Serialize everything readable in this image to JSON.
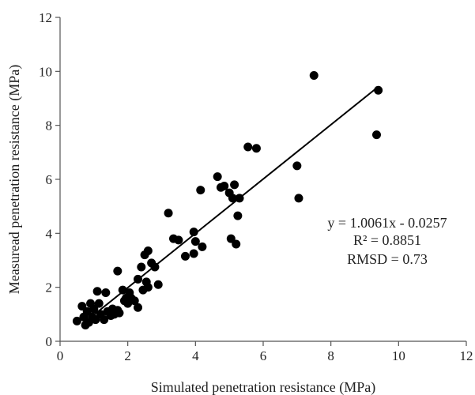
{
  "chart_data": {
    "type": "scatter",
    "title": "",
    "xlabel": "Simulated penetration resistance (MPa)",
    "ylabel": "Measuread penetration resistance (MPa)",
    "xlim": [
      0,
      12
    ],
    "ylim": [
      0,
      12
    ],
    "xticks": [
      0,
      2,
      4,
      6,
      8,
      10,
      12
    ],
    "yticks": [
      0,
      2,
      4,
      6,
      8,
      10,
      12
    ],
    "grid": false,
    "legend": "none",
    "colors": {
      "points": "#000000",
      "line": "#000000",
      "axis": "#555555"
    },
    "annotations": [
      "y = 1.0061x - 0.0257",
      "R² = 0.8851",
      "RMSD = 0.73"
    ],
    "fit": {
      "slope": 1.0061,
      "intercept": -0.0257,
      "x_range": [
        0.65,
        9.4
      ]
    },
    "points": [
      [
        0.5,
        0.75
      ],
      [
        0.65,
        1.3
      ],
      [
        0.7,
        0.9
      ],
      [
        0.75,
        0.6
      ],
      [
        0.8,
        1.1
      ],
      [
        0.85,
        0.7
      ],
      [
        0.9,
        1.4
      ],
      [
        0.95,
        0.9
      ],
      [
        1.0,
        1.2
      ],
      [
        1.05,
        0.8
      ],
      [
        1.1,
        1.85
      ],
      [
        1.15,
        1.4
      ],
      [
        1.2,
        1.0
      ],
      [
        1.3,
        0.8
      ],
      [
        1.35,
        1.8
      ],
      [
        1.4,
        1.1
      ],
      [
        1.5,
        0.95
      ],
      [
        1.55,
        1.2
      ],
      [
        1.6,
        1.0
      ],
      [
        1.7,
        1.15
      ],
      [
        1.7,
        2.6
      ],
      [
        1.75,
        1.05
      ],
      [
        1.85,
        1.9
      ],
      [
        1.9,
        1.5
      ],
      [
        1.95,
        1.6
      ],
      [
        2.0,
        1.4
      ],
      [
        2.05,
        1.8
      ],
      [
        2.1,
        1.6
      ],
      [
        2.2,
        1.5
      ],
      [
        2.3,
        1.25
      ],
      [
        2.3,
        2.3
      ],
      [
        2.4,
        2.75
      ],
      [
        2.45,
        1.9
      ],
      [
        2.5,
        3.2
      ],
      [
        2.55,
        2.2
      ],
      [
        2.6,
        3.35
      ],
      [
        2.6,
        2.0
      ],
      [
        2.7,
        2.9
      ],
      [
        2.8,
        2.75
      ],
      [
        2.9,
        2.1
      ],
      [
        3.2,
        4.75
      ],
      [
        3.35,
        3.8
      ],
      [
        3.5,
        3.75
      ],
      [
        3.7,
        3.15
      ],
      [
        3.95,
        3.25
      ],
      [
        3.95,
        4.05
      ],
      [
        4.0,
        3.7
      ],
      [
        4.15,
        5.6
      ],
      [
        4.2,
        3.5
      ],
      [
        4.65,
        6.1
      ],
      [
        4.75,
        5.7
      ],
      [
        4.85,
        5.75
      ],
      [
        5.0,
        5.5
      ],
      [
        5.05,
        3.8
      ],
      [
        5.1,
        5.3
      ],
      [
        5.15,
        5.8
      ],
      [
        5.2,
        3.6
      ],
      [
        5.25,
        4.65
      ],
      [
        5.3,
        5.3
      ],
      [
        5.55,
        7.2
      ],
      [
        5.8,
        7.15
      ],
      [
        7.0,
        6.5
      ],
      [
        7.05,
        5.3
      ],
      [
        7.5,
        9.85
      ],
      [
        9.35,
        7.65
      ],
      [
        9.4,
        9.3
      ]
    ]
  }
}
